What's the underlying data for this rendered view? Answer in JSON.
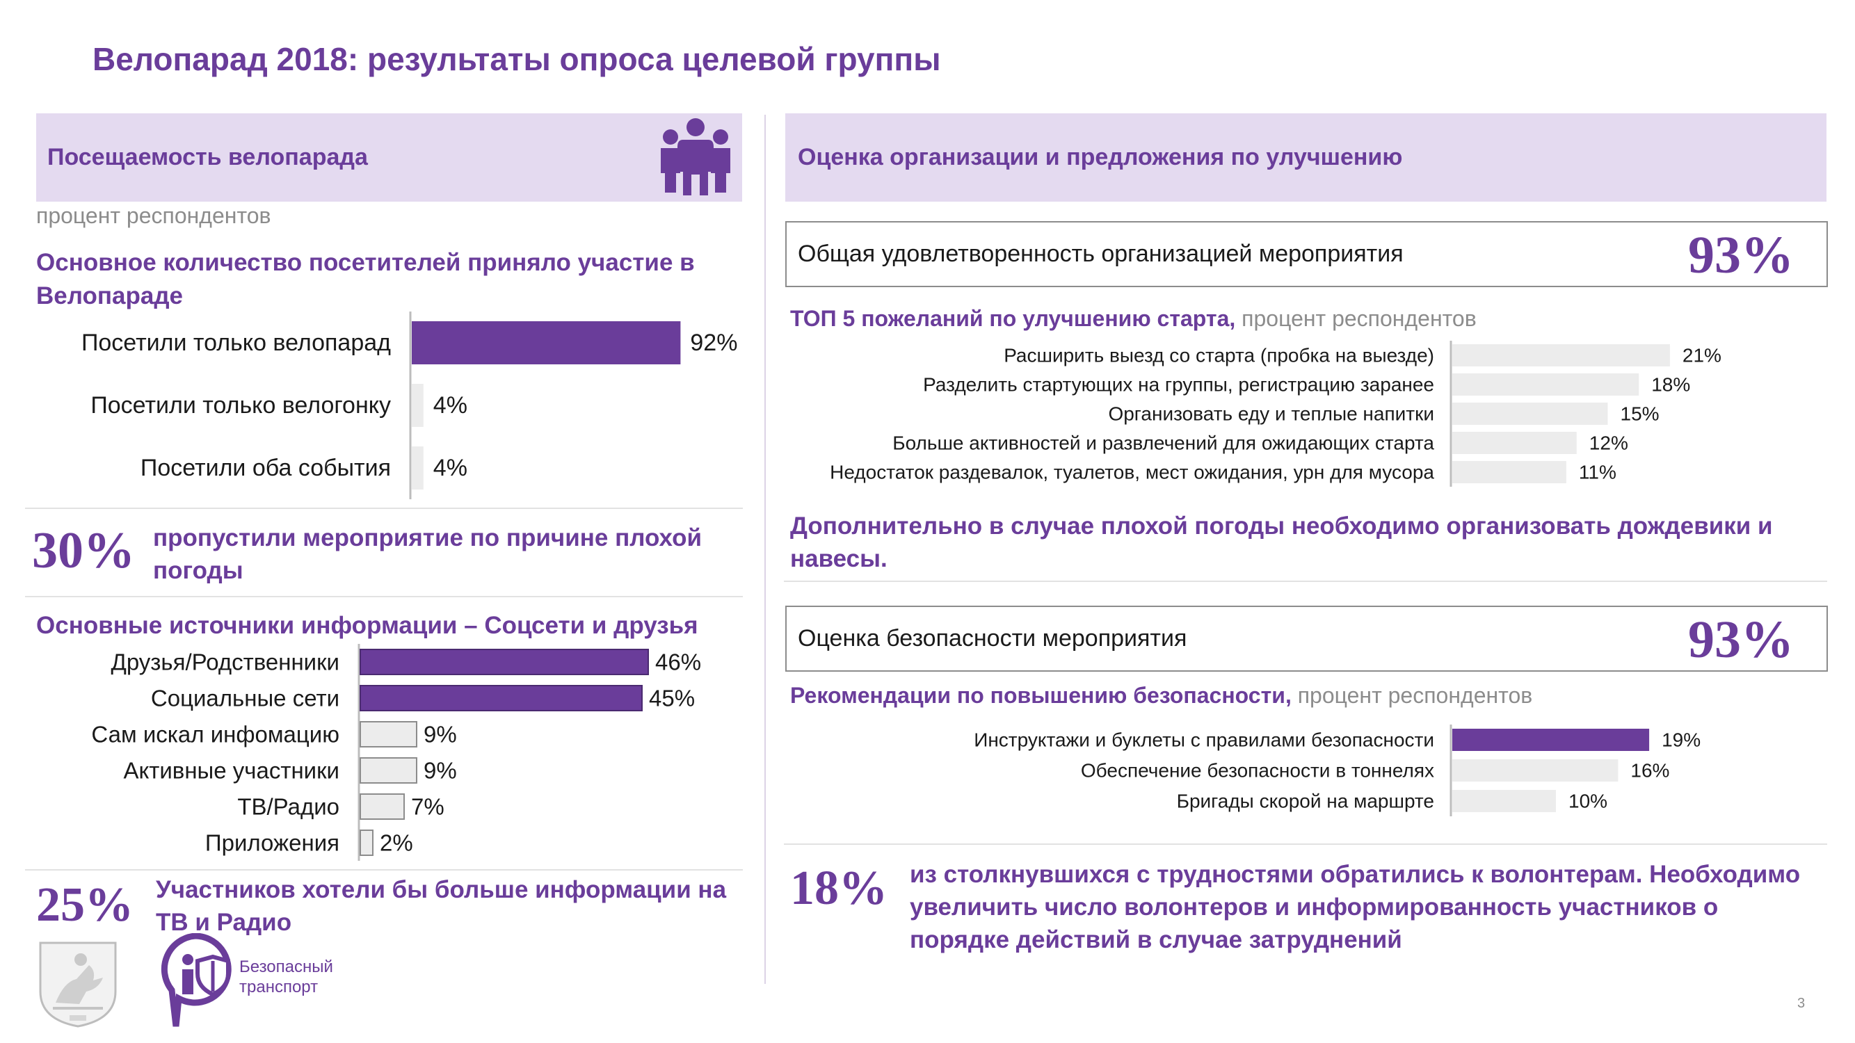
{
  "title": "Велопарад 2018: результаты опроса целевой группы",
  "left": {
    "header": "Посещаемость велопарада",
    "subtitle": "процент респондентов",
    "attendance_heading": "Основное количество посетителей приняло участие в Велопараде",
    "missed_pct": "30%",
    "missed_text": "пропустили мероприятие по причине плохой погоды",
    "sources_heading": "Основные источники информации – Соцсети и друзья",
    "tv_pct": "25%",
    "tv_text": "Участников хотели бы больше информации на ТВ и Радио",
    "logo_text_1": "Безопасный",
    "logo_text_2": "транспорт"
  },
  "right": {
    "header": "Оценка организации и предложения по улучшению",
    "satisfaction_label": "Общая удовлетворенность организацией мероприятия",
    "satisfaction_pct": "93%",
    "top5_heading": "ТОП 5 пожеланий по улучшению старта,",
    "top5_sub": " процент респондентов",
    "rain_text": "Дополнительно в случае плохой погоды необходимо организовать дождевики и навесы.",
    "safety_label": "Оценка безопасности мероприятия",
    "safety_pct": "93%",
    "safety_heading": "Рекомендации по повышению безопасности,",
    "safety_sub": " процент респондентов",
    "volunteer_pct": "18%",
    "volunteer_text": "из столкнувшихся с трудностями обратились к волонтерам. Необходимо увеличить число волонтеров и информированность участников о порядке действий в случае затруднений"
  },
  "page_number": "3",
  "colors": {
    "accent": "#6a3d9a",
    "band": "#e4daf0",
    "bar_light": "#ececec"
  },
  "chart_data": [
    {
      "type": "bar",
      "orientation": "horizontal",
      "title": "Основное количество посетителей приняло участие в Велопараде",
      "categories": [
        "Посетили только велопарад",
        "Посетили только велогонку",
        "Посетили оба события"
      ],
      "values": [
        92,
        4,
        4
      ],
      "labels": [
        "92%",
        "4%",
        "4%"
      ],
      "highlight": [
        true,
        false,
        false
      ],
      "xlim": [
        0,
        100
      ]
    },
    {
      "type": "bar",
      "orientation": "horizontal",
      "title": "Основные источники информации – Соцсети и друзья",
      "categories": [
        "Друзья/Родственники",
        "Социальные сети",
        "Сам искал инфомацию",
        "Активные участники",
        "ТВ/Радио",
        "Приложения"
      ],
      "values": [
        46,
        45,
        9,
        9,
        7,
        2
      ],
      "labels": [
        "46%",
        "45%",
        "9%",
        "9%",
        "7%",
        "2%"
      ],
      "highlight": [
        true,
        true,
        false,
        false,
        false,
        false
      ],
      "xlim": [
        0,
        100
      ]
    },
    {
      "type": "bar",
      "orientation": "horizontal",
      "title": "ТОП 5 пожеланий по улучшению старта",
      "categories": [
        "Расширить выезд со старта (пробка на выезде)",
        "Разделить стартующих на группы, регистрацию заранее",
        "Организовать еду и теплые напитки",
        "Больше активностей и развлечений для ожидающих старта",
        "Недостаток раздевалок, туалетов, мест ожидания, урн для мусора"
      ],
      "values": [
        21,
        18,
        15,
        12,
        11
      ],
      "labels": [
        "21%",
        "18%",
        "15%",
        "12%",
        "11%"
      ],
      "highlight": [
        false,
        false,
        false,
        false,
        false
      ],
      "xlim": [
        0,
        100
      ]
    },
    {
      "type": "bar",
      "orientation": "horizontal",
      "title": "Рекомендации по повышению безопасности",
      "categories": [
        "Инструктажи и буклеты с правилами безопасности",
        "Обеспечение безопасности в тоннелях",
        "Бригады скорой на маршрте"
      ],
      "values": [
        19,
        16,
        10
      ],
      "labels": [
        "19%",
        "16%",
        "10%"
      ],
      "highlight": [
        true,
        false,
        false
      ],
      "xlim": [
        0,
        100
      ]
    }
  ]
}
